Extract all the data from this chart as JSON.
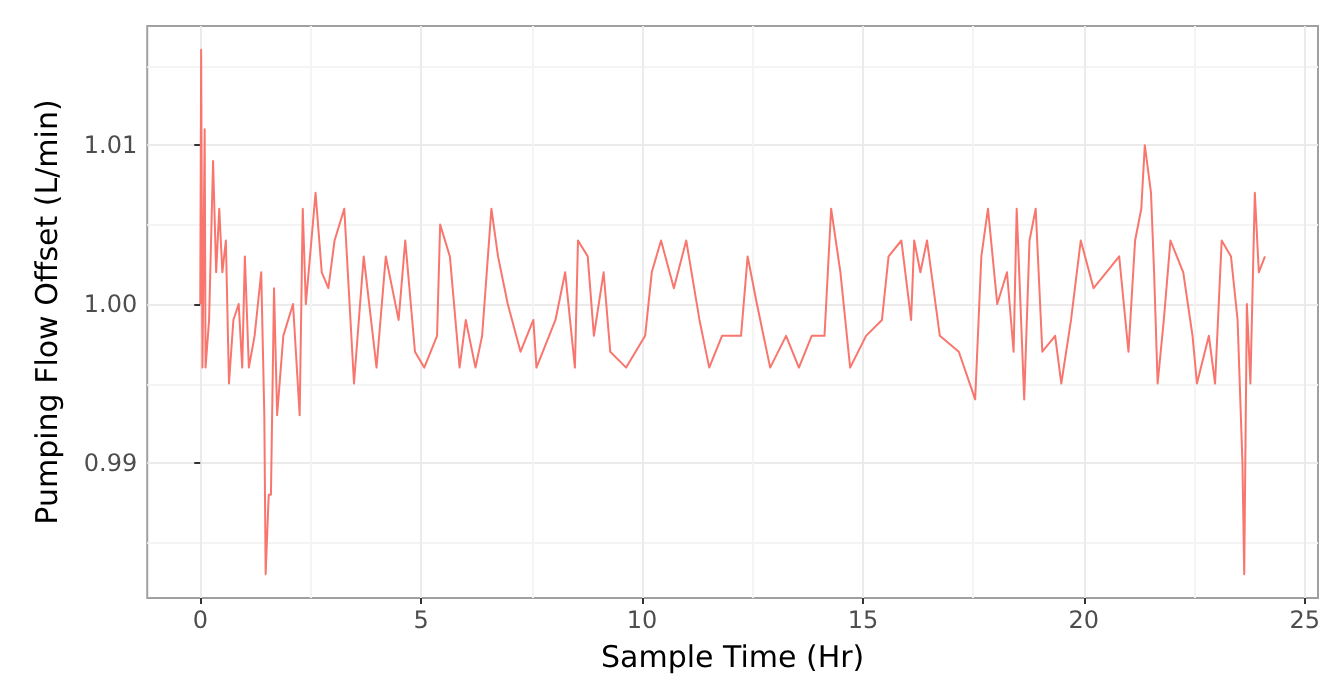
{
  "chart_data": {
    "type": "line",
    "xlabel": "Sample Time (Hr)",
    "ylabel": "Pumping Flow Offset (L/min)",
    "xlim": [
      -1.2,
      25.3
    ],
    "xticks": [
      0,
      5,
      10,
      15,
      20,
      25
    ],
    "ylim": [
      0.9815,
      1.0175
    ],
    "yticks": [
      {
        "value": 0.99,
        "label": "0.99"
      },
      {
        "value": 1.0,
        "label": "1.00"
      },
      {
        "value": 1.01,
        "label": "1.01"
      }
    ],
    "grid": true,
    "marker": "none",
    "line_style": "solid",
    "series": [
      {
        "color": "#f8766d",
        "x": [
          0.0,
          0.02,
          0.05,
          0.1,
          0.12,
          0.2,
          0.29,
          0.36,
          0.43,
          0.5,
          0.58,
          0.65,
          0.75,
          0.87,
          0.95,
          1.01,
          1.1,
          1.23,
          1.38,
          1.45,
          1.48,
          1.55,
          1.6,
          1.67,
          1.74,
          1.88,
          2.1,
          2.25,
          2.32,
          2.39,
          2.61,
          2.75,
          2.9,
          3.04,
          3.26,
          3.48,
          3.7,
          3.99,
          4.2,
          4.49,
          4.64,
          4.86,
          5.07,
          5.36,
          5.43,
          5.65,
          5.87,
          6.01,
          6.23,
          6.38,
          6.59,
          6.74,
          6.96,
          7.25,
          7.54,
          7.61,
          8.04,
          8.26,
          8.48,
          8.55,
          8.77,
          8.91,
          9.13,
          9.28,
          9.64,
          10.07,
          10.22,
          10.43,
          10.72,
          11.0,
          11.3,
          11.52,
          11.81,
          12.24,
          12.39,
          12.6,
          12.9,
          13.26,
          13.55,
          13.84,
          14.13,
          14.28,
          14.49,
          14.71,
          15.07,
          15.43,
          15.58,
          15.87,
          16.09,
          16.16,
          16.3,
          16.45,
          16.74,
          17.17,
          17.54,
          17.68,
          17.83,
          18.04,
          18.26,
          18.41,
          18.48,
          18.65,
          18.77,
          18.91,
          19.06,
          19.35,
          19.49,
          19.71,
          19.93,
          20.22,
          20.51,
          20.8,
          21.01,
          21.16,
          21.3,
          21.38,
          21.52,
          21.59,
          21.67,
          21.81,
          21.96,
          22.25,
          22.46,
          22.56,
          22.83,
          22.97,
          23.12,
          23.33,
          23.48,
          23.59,
          23.63,
          23.69,
          23.77,
          23.87,
          23.96,
          24.1
        ],
        "values": [
          1.0,
          1.016,
          0.996,
          1.011,
          0.996,
          0.999,
          1.009,
          1.002,
          1.006,
          1.002,
          1.004,
          0.995,
          0.999,
          1.0,
          0.996,
          1.003,
          0.996,
          0.998,
          1.002,
          0.993,
          0.983,
          0.988,
          0.988,
          1.001,
          0.993,
          0.998,
          1.0,
          0.993,
          1.006,
          1.0,
          1.007,
          1.002,
          1.001,
          1.004,
          1.006,
          0.995,
          1.003,
          0.996,
          1.003,
          0.999,
          1.004,
          0.997,
          0.996,
          0.998,
          1.005,
          1.003,
          0.996,
          0.999,
          0.996,
          0.998,
          1.006,
          1.003,
          1.0,
          0.997,
          0.999,
          0.996,
          0.999,
          1.002,
          0.996,
          1.004,
          1.003,
          0.998,
          1.002,
          0.997,
          0.996,
          0.998,
          1.002,
          1.004,
          1.001,
          1.004,
          0.999,
          0.996,
          0.998,
          0.998,
          1.003,
          1.0,
          0.996,
          0.998,
          0.996,
          0.998,
          0.998,
          1.006,
          1.002,
          0.996,
          0.998,
          0.999,
          1.003,
          1.004,
          0.999,
          1.004,
          1.002,
          1.004,
          0.998,
          0.997,
          0.994,
          1.003,
          1.006,
          1.0,
          1.002,
          0.997,
          1.006,
          0.994,
          1.004,
          1.006,
          0.997,
          0.998,
          0.995,
          0.999,
          1.004,
          1.001,
          1.002,
          1.003,
          0.997,
          1.004,
          1.006,
          1.01,
          1.007,
          1.002,
          0.995,
          0.999,
          1.004,
          1.002,
          0.998,
          0.995,
          0.998,
          0.995,
          1.004,
          1.003,
          0.999,
          0.99,
          0.983,
          1.0,
          0.995,
          1.007,
          1.002,
          1.003
        ]
      }
    ]
  }
}
